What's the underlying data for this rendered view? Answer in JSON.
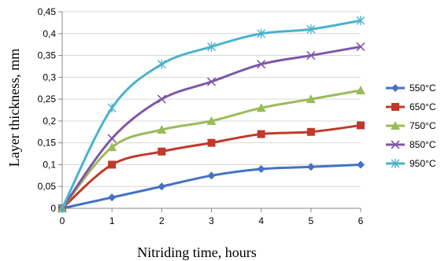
{
  "chart_data": {
    "type": "line",
    "title": "",
    "xlabel": "Nitriding time, hours",
    "ylabel": "Layer thickness, mm",
    "x": [
      0,
      1,
      2,
      3,
      4,
      5,
      6
    ],
    "xlim": [
      0,
      6
    ],
    "ylim": [
      0,
      0.45
    ],
    "yticks": [
      "0",
      "0,05",
      "0,1",
      "0,15",
      "0,2",
      "0,25",
      "0,3",
      "0,35",
      "0,4",
      "0,45"
    ],
    "xticks": [
      "0",
      "1",
      "2",
      "3",
      "4",
      "5",
      "6"
    ],
    "grid": "horizontal",
    "legend": "right",
    "series": [
      {
        "name": "550°C",
        "color": "#4472C4",
        "marker": "diamond",
        "values": [
          0,
          0.025,
          0.05,
          0.075,
          0.09,
          0.095,
          0.1
        ]
      },
      {
        "name": "650°C",
        "color": "#C0392B",
        "marker": "square",
        "values": [
          0,
          0.1,
          0.13,
          0.15,
          0.17,
          0.175,
          0.19
        ]
      },
      {
        "name": "750°C",
        "color": "#9BBB59",
        "marker": "triangle",
        "values": [
          0,
          0.14,
          0.18,
          0.2,
          0.23,
          0.25,
          0.27
        ]
      },
      {
        "name": "850°C",
        "color": "#7E57A8",
        "marker": "x",
        "values": [
          0,
          0.16,
          0.25,
          0.29,
          0.33,
          0.35,
          0.37
        ]
      },
      {
        "name": "950°C",
        "color": "#4BB3CC",
        "marker": "star",
        "values": [
          0,
          0.23,
          0.33,
          0.37,
          0.4,
          0.41,
          0.43
        ]
      }
    ]
  }
}
